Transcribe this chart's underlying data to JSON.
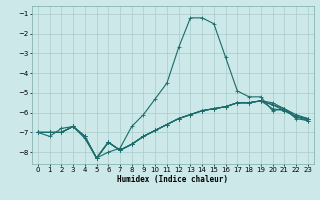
{
  "title": "",
  "xlabel": "Humidex (Indice chaleur)",
  "background_color": "#cce8e8",
  "grid_color": "#aacccc",
  "line_color": "#1a6b6b",
  "xlim": [
    -0.5,
    23.5
  ],
  "ylim": [
    -8.6,
    -0.6
  ],
  "yticks": [
    -8,
    -7,
    -6,
    -5,
    -4,
    -3,
    -2,
    -1
  ],
  "xticks": [
    0,
    1,
    2,
    3,
    4,
    5,
    6,
    7,
    8,
    9,
    10,
    11,
    12,
    13,
    14,
    15,
    16,
    17,
    18,
    19,
    20,
    21,
    22,
    23
  ],
  "main_y": [
    -7.0,
    -7.2,
    -6.8,
    -6.7,
    -7.3,
    -8.3,
    -8.0,
    -7.8,
    -6.7,
    -6.1,
    -5.3,
    -4.5,
    -2.7,
    -1.2,
    -1.2,
    -1.5,
    -3.2,
    -4.9,
    -5.2,
    -5.2,
    -5.9,
    -5.8,
    -6.3,
    -6.4
  ],
  "flat_lines": [
    [
      -7.0,
      -7.0,
      -7.0,
      -6.7,
      -7.2,
      -8.3,
      -7.5,
      -7.9,
      -7.6,
      -7.2,
      -6.9,
      -6.6,
      -6.3,
      -6.1,
      -5.9,
      -5.8,
      -5.7,
      -5.5,
      -5.5,
      -5.4,
      -5.5,
      -5.8,
      -6.1,
      -6.3
    ],
    [
      -7.0,
      -7.0,
      -7.0,
      -6.7,
      -7.2,
      -8.3,
      -7.5,
      -7.9,
      -7.6,
      -7.2,
      -6.9,
      -6.6,
      -6.3,
      -6.1,
      -5.9,
      -5.8,
      -5.7,
      -5.5,
      -5.5,
      -5.4,
      -5.8,
      -5.9,
      -6.2,
      -6.4
    ],
    [
      -7.0,
      -7.0,
      -7.0,
      -6.7,
      -7.2,
      -8.3,
      -7.5,
      -7.9,
      -7.6,
      -7.2,
      -6.9,
      -6.6,
      -6.3,
      -6.1,
      -5.9,
      -5.8,
      -5.7,
      -5.5,
      -5.5,
      -5.4,
      -5.6,
      -5.8,
      -6.2,
      -6.3
    ],
    [
      -7.0,
      -7.0,
      -7.0,
      -6.7,
      -7.2,
      -8.3,
      -7.5,
      -7.9,
      -7.6,
      -7.2,
      -6.9,
      -6.6,
      -6.3,
      -6.1,
      -5.9,
      -5.8,
      -5.7,
      -5.5,
      -5.5,
      -5.4,
      -5.6,
      -5.9,
      -6.2,
      -6.3
    ]
  ],
  "linewidth": 0.8,
  "markersize": 2.5,
  "xlabel_fontsize": 5.5,
  "tick_labelsize": 5.0
}
